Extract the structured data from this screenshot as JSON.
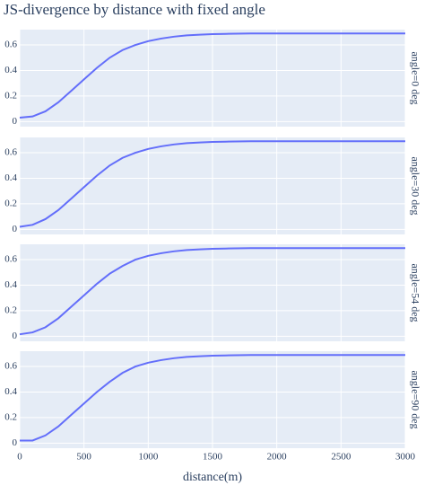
{
  "chart_data": [
    {
      "type": "line",
      "title": "JS-divergence by distance with fixed angle",
      "facet_label": "angle=0 deg",
      "color": "#636efa",
      "x": [
        0,
        100,
        200,
        300,
        400,
        500,
        600,
        700,
        800,
        900,
        1000,
        1100,
        1200,
        1300,
        1400,
        1500,
        1600,
        1800,
        2000,
        2500,
        3000
      ],
      "values": [
        0.03,
        0.04,
        0.08,
        0.15,
        0.24,
        0.33,
        0.42,
        0.5,
        0.56,
        0.6,
        0.63,
        0.65,
        0.665,
        0.675,
        0.68,
        0.685,
        0.687,
        0.69,
        0.69,
        0.69,
        0.69
      ],
      "ylim": [
        -0.04,
        0.72
      ],
      "yticks": [
        0,
        0.2,
        0.4,
        0.6
      ],
      "grid": true
    },
    {
      "type": "line",
      "facet_label": "angle=30 deg",
      "color": "#636efa",
      "x": [
        0,
        100,
        200,
        300,
        400,
        500,
        600,
        700,
        800,
        900,
        1000,
        1100,
        1200,
        1300,
        1400,
        1500,
        1600,
        1800,
        2000,
        2500,
        3000
      ],
      "values": [
        0.02,
        0.035,
        0.08,
        0.15,
        0.24,
        0.33,
        0.42,
        0.5,
        0.56,
        0.6,
        0.63,
        0.65,
        0.665,
        0.675,
        0.68,
        0.685,
        0.687,
        0.69,
        0.69,
        0.69,
        0.69
      ],
      "ylim": [
        -0.04,
        0.72
      ],
      "yticks": [
        0,
        0.2,
        0.4,
        0.6
      ],
      "grid": true
    },
    {
      "type": "line",
      "facet_label": "angle=54 deg",
      "color": "#636efa",
      "x": [
        0,
        100,
        200,
        300,
        400,
        500,
        600,
        700,
        800,
        900,
        1000,
        1100,
        1200,
        1300,
        1400,
        1500,
        1600,
        1800,
        2000,
        2500,
        3000
      ],
      "values": [
        0.015,
        0.03,
        0.07,
        0.14,
        0.23,
        0.32,
        0.41,
        0.49,
        0.55,
        0.6,
        0.63,
        0.65,
        0.665,
        0.675,
        0.68,
        0.685,
        0.687,
        0.69,
        0.69,
        0.69,
        0.69
      ],
      "ylim": [
        -0.04,
        0.72
      ],
      "yticks": [
        0,
        0.2,
        0.4,
        0.6
      ],
      "grid": true
    },
    {
      "type": "line",
      "facet_label": "angle=90 deg",
      "x_label": "distance(m)",
      "color": "#636efa",
      "x": [
        0,
        100,
        200,
        300,
        400,
        500,
        600,
        700,
        800,
        900,
        1000,
        1100,
        1200,
        1300,
        1400,
        1500,
        1600,
        1800,
        2000,
        2500,
        3000
      ],
      "values": [
        0.02,
        0.02,
        0.06,
        0.13,
        0.22,
        0.31,
        0.4,
        0.48,
        0.55,
        0.6,
        0.63,
        0.65,
        0.665,
        0.675,
        0.68,
        0.685,
        0.687,
        0.69,
        0.69,
        0.69,
        0.69
      ],
      "ylim": [
        -0.04,
        0.72
      ],
      "yticks": [
        0,
        0.2,
        0.4,
        0.6
      ],
      "grid": true,
      "xlim": [
        0,
        3000
      ],
      "xticks": [
        0,
        500,
        1000,
        1500,
        2000,
        2500,
        3000
      ]
    }
  ]
}
